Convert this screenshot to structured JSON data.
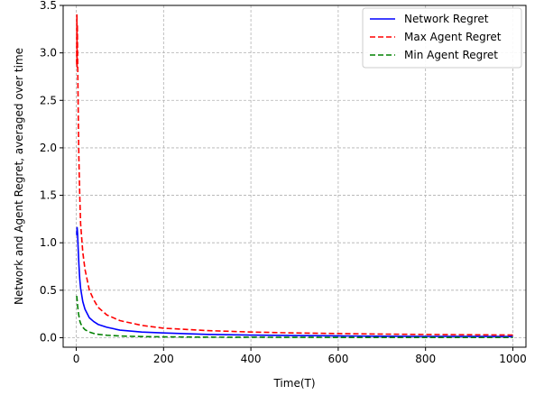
{
  "chart_data": {
    "type": "line",
    "xlabel": "Time(T)",
    "ylabel": "Network and Agent Regret, averaged over time",
    "xlim": [
      -30,
      1030
    ],
    "ylim": [
      -0.1,
      3.5
    ],
    "xticks": [
      0,
      200,
      400,
      600,
      800,
      1000
    ],
    "yticks": [
      0.0,
      0.5,
      1.0,
      1.5,
      2.0,
      2.5,
      3.0,
      3.5
    ],
    "ytick_labels": [
      "0.0",
      "0.5",
      "1.0",
      "1.5",
      "2.0",
      "2.5",
      "3.0",
      "3.5"
    ],
    "grid": true,
    "legend_position": "top-right",
    "series": [
      {
        "name": "Network Regret",
        "color": "#0000ff",
        "style": "solid",
        "x": [
          1,
          2,
          3,
          4,
          6,
          8,
          10,
          15,
          20,
          30,
          40,
          50,
          70,
          100,
          150,
          200,
          300,
          400,
          500,
          600,
          700,
          800,
          900,
          1000
        ],
        "y": [
          1.08,
          1.16,
          1.1,
          0.98,
          0.78,
          0.62,
          0.52,
          0.38,
          0.3,
          0.21,
          0.17,
          0.14,
          0.11,
          0.08,
          0.06,
          0.05,
          0.035,
          0.028,
          0.023,
          0.019,
          0.016,
          0.014,
          0.013,
          0.012
        ]
      },
      {
        "name": "Max Agent Regret",
        "color": "#ff0000",
        "style": "dashed",
        "x": [
          1,
          1.5,
          2,
          2.5,
          3,
          4,
          5,
          6,
          8,
          10,
          15,
          20,
          30,
          40,
          50,
          70,
          100,
          150,
          200,
          300,
          400,
          500,
          600,
          700,
          800,
          900,
          1000
        ],
        "y": [
          2.88,
          3.4,
          2.85,
          3.3,
          3.02,
          2.6,
          2.2,
          1.9,
          1.5,
          1.2,
          0.9,
          0.72,
          0.5,
          0.4,
          0.32,
          0.24,
          0.18,
          0.13,
          0.1,
          0.075,
          0.06,
          0.05,
          0.044,
          0.038,
          0.034,
          0.031,
          0.028
        ]
      },
      {
        "name": "Min Agent Regret",
        "color": "#008000",
        "style": "dashed",
        "x": [
          1,
          2,
          3,
          5,
          8,
          10,
          15,
          20,
          30,
          40,
          50,
          70,
          100,
          150,
          200,
          300,
          400,
          500,
          600,
          700,
          800,
          900,
          1000
        ],
        "y": [
          0.44,
          0.4,
          0.34,
          0.26,
          0.18,
          0.15,
          0.11,
          0.085,
          0.06,
          0.045,
          0.036,
          0.026,
          0.018,
          0.012,
          0.009,
          0.006,
          0.005,
          0.004,
          0.003,
          0.0028,
          0.0025,
          0.0022,
          0.002
        ]
      }
    ]
  }
}
